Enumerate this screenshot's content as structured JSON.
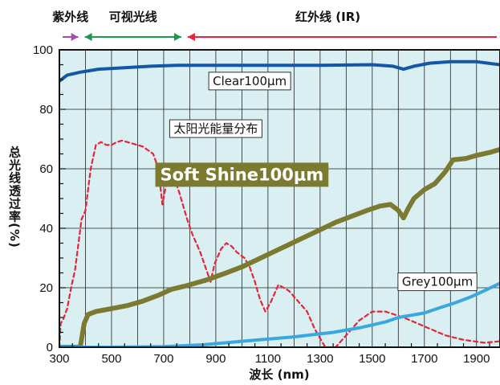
{
  "chart_data": {
    "type": "line",
    "xlabel": "波长 (nm)",
    "ylabel": "总光线透过率(%)",
    "xlim": [
      300,
      1990
    ],
    "ylim": [
      0,
      100
    ],
    "x_ticks": [
      300,
      500,
      700,
      900,
      1100,
      1300,
      1500,
      1700,
      1900
    ],
    "y_ticks": [
      0,
      20,
      40,
      60,
      80,
      100
    ],
    "grid": true,
    "bands": [
      {
        "label": "紫外线",
        "from": 300,
        "to": 385,
        "color": "#a84db0"
      },
      {
        "label": "可视光线",
        "from": 385,
        "to": 780,
        "color": "#1a9a4a"
      },
      {
        "label": "红外线 (IR)",
        "from": 780,
        "to": 1990,
        "color": "#e8233a"
      }
    ],
    "series": [
      {
        "name": "Clear100μm",
        "color": "#1456a8",
        "style": "solid",
        "label_pos": [
          1030,
          89.5
        ],
        "points": [
          [
            300,
            89.5
          ],
          [
            330,
            91.5
          ],
          [
            380,
            92.5
          ],
          [
            450,
            93.5
          ],
          [
            550,
            94
          ],
          [
            650,
            94.5
          ],
          [
            750,
            94.8
          ],
          [
            900,
            94.8
          ],
          [
            1100,
            94.8
          ],
          [
            1300,
            94.8
          ],
          [
            1500,
            95
          ],
          [
            1580,
            94.5
          ],
          [
            1620,
            93.5
          ],
          [
            1660,
            94.5
          ],
          [
            1720,
            95.5
          ],
          [
            1800,
            96
          ],
          [
            1900,
            96
          ],
          [
            1990,
            95
          ]
        ]
      },
      {
        "name": "太阳光能量分布",
        "color": "#e8233a",
        "style": "dashed",
        "label_pos": [
          900,
          73.5
        ],
        "points": [
          [
            300,
            0
          ],
          [
            305,
            8
          ],
          [
            315,
            9.5
          ],
          [
            330,
            13
          ],
          [
            345,
            20
          ],
          [
            360,
            26
          ],
          [
            385,
            43
          ],
          [
            400,
            46
          ],
          [
            420,
            60
          ],
          [
            440,
            68
          ],
          [
            460,
            69
          ],
          [
            480,
            68
          ],
          [
            500,
            68
          ],
          [
            520,
            69
          ],
          [
            540,
            69.5
          ],
          [
            560,
            69
          ],
          [
            580,
            68.5
          ],
          [
            620,
            67.5
          ],
          [
            660,
            65
          ],
          [
            680,
            60
          ],
          [
            695,
            48
          ],
          [
            710,
            55
          ],
          [
            720,
            59
          ],
          [
            740,
            57
          ],
          [
            760,
            52
          ],
          [
            790,
            43
          ],
          [
            810,
            38
          ],
          [
            840,
            32
          ],
          [
            860,
            27
          ],
          [
            880,
            22
          ],
          [
            895,
            28
          ],
          [
            920,
            33
          ],
          [
            940,
            35
          ],
          [
            960,
            34
          ],
          [
            980,
            32
          ],
          [
            1010,
            30
          ],
          [
            1030,
            27
          ],
          [
            1050,
            22
          ],
          [
            1070,
            16
          ],
          [
            1090,
            12
          ],
          [
            1110,
            15
          ],
          [
            1140,
            21
          ],
          [
            1180,
            19
          ],
          [
            1210,
            16
          ],
          [
            1250,
            12
          ],
          [
            1280,
            6
          ],
          [
            1300,
            3
          ],
          [
            1320,
            0
          ],
          [
            1340,
            0
          ],
          [
            1360,
            0
          ],
          [
            1400,
            4
          ],
          [
            1450,
            9
          ],
          [
            1500,
            12
          ],
          [
            1550,
            12
          ],
          [
            1620,
            10
          ],
          [
            1700,
            7
          ],
          [
            1780,
            4
          ],
          [
            1850,
            2.5
          ],
          [
            1930,
            1.5
          ],
          [
            1990,
            2
          ]
        ]
      },
      {
        "name": "Soft Shine100μm",
        "color": "#7b7a30",
        "style": "solid",
        "label_pos": [
          1000,
          58
        ],
        "points": [
          [
            300,
            0
          ],
          [
            380,
            0
          ],
          [
            395,
            8
          ],
          [
            410,
            11
          ],
          [
            440,
            12
          ],
          [
            500,
            13
          ],
          [
            560,
            14
          ],
          [
            620,
            15.5
          ],
          [
            680,
            17.5
          ],
          [
            730,
            19.5
          ],
          [
            780,
            20.5
          ],
          [
            860,
            22.5
          ],
          [
            940,
            25
          ],
          [
            1000,
            27
          ],
          [
            1060,
            29.5
          ],
          [
            1120,
            32
          ],
          [
            1180,
            34.5
          ],
          [
            1240,
            37
          ],
          [
            1300,
            39.5
          ],
          [
            1360,
            42
          ],
          [
            1420,
            44
          ],
          [
            1480,
            46
          ],
          [
            1530,
            47.5
          ],
          [
            1570,
            48
          ],
          [
            1600,
            46
          ],
          [
            1620,
            43.5
          ],
          [
            1640,
            47
          ],
          [
            1660,
            50
          ],
          [
            1700,
            53
          ],
          [
            1740,
            55
          ],
          [
            1780,
            59
          ],
          [
            1810,
            63
          ],
          [
            1860,
            63.5
          ],
          [
            1900,
            64.5
          ],
          [
            1950,
            65.5
          ],
          [
            1990,
            66.5
          ]
        ]
      },
      {
        "name": "Grey100μm",
        "color": "#3aa8e0",
        "style": "solid",
        "label_pos": [
          1750,
          22
        ],
        "points": [
          [
            300,
            0
          ],
          [
            500,
            0
          ],
          [
            700,
            0.2
          ],
          [
            850,
            0.8
          ],
          [
            1000,
            2
          ],
          [
            1200,
            3.5
          ],
          [
            1350,
            5
          ],
          [
            1450,
            6.5
          ],
          [
            1500,
            7.5
          ],
          [
            1550,
            8.5
          ],
          [
            1600,
            10
          ],
          [
            1700,
            11.5
          ],
          [
            1750,
            13
          ],
          [
            1820,
            15
          ],
          [
            1880,
            17
          ],
          [
            1930,
            19
          ],
          [
            1990,
            21.5
          ]
        ]
      }
    ]
  }
}
